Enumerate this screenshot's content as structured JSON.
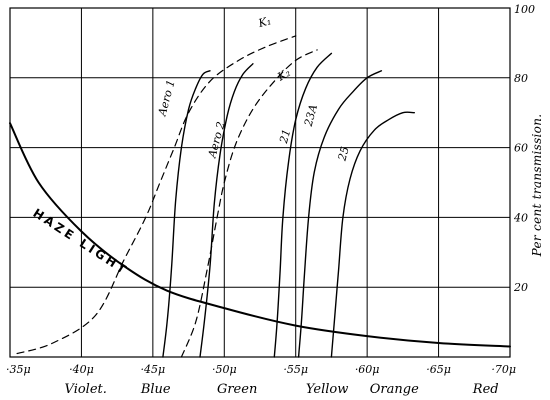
{
  "chart_data": {
    "type": "line",
    "ylabel": "Per cent transmission.",
    "xlim": [
      0.35,
      0.7
    ],
    "ylim": [
      0,
      100
    ],
    "grid": true,
    "x_ticks": [
      {
        "value": 0.35,
        "label": "·35μ"
      },
      {
        "value": 0.4,
        "label": "·40μ"
      },
      {
        "value": 0.45,
        "label": "·45μ"
      },
      {
        "value": 0.5,
        "label": "·50μ"
      },
      {
        "value": 0.55,
        "label": "·55μ"
      },
      {
        "value": 0.6,
        "label": "·60μ"
      },
      {
        "value": 0.65,
        "label": "·65μ"
      },
      {
        "value": 0.7,
        "label": "·70μ"
      }
    ],
    "y_ticks": [
      {
        "value": 20,
        "label": "20"
      },
      {
        "value": 40,
        "label": "40"
      },
      {
        "value": 60,
        "label": "60"
      },
      {
        "value": 80,
        "label": "80"
      },
      {
        "value": 100,
        "label": "100"
      }
    ],
    "color_bands": [
      {
        "x": 0.403,
        "label": "Violet."
      },
      {
        "x": 0.452,
        "label": "Blue"
      },
      {
        "x": 0.509,
        "label": "Green"
      },
      {
        "x": 0.572,
        "label": "Yellow"
      },
      {
        "x": 0.619,
        "label": "Orange"
      },
      {
        "x": 0.683,
        "label": "Red"
      }
    ],
    "series": [
      {
        "name": "HAZE LIGHT",
        "style": "solid",
        "weight": 2.0,
        "x": [
          0.35,
          0.37,
          0.4,
          0.43,
          0.46,
          0.5,
          0.55,
          0.6,
          0.65,
          0.7
        ],
        "y": [
          67,
          50,
          36,
          26,
          19,
          14,
          9,
          6,
          4,
          3
        ]
      },
      {
        "name": "Aero 1",
        "style": "solid",
        "weight": 1.4,
        "x": [
          0.457,
          0.46,
          0.463,
          0.466,
          0.47,
          0.475,
          0.48,
          0.485,
          0.49
        ],
        "y": [
          0,
          10,
          25,
          45,
          60,
          71,
          77,
          81,
          82
        ]
      },
      {
        "name": "K₁",
        "style": "dashed",
        "weight": 1.2,
        "x": [
          0.355,
          0.38,
          0.41,
          0.43,
          0.445,
          0.455,
          0.465,
          0.475,
          0.49,
          0.51,
          0.53,
          0.55
        ],
        "y": [
          1,
          4,
          12,
          28,
          40,
          50,
          60,
          70,
          79,
          85,
          89,
          92
        ]
      },
      {
        "name": "Aero 2",
        "style": "solid",
        "weight": 1.4,
        "x": [
          0.483,
          0.486,
          0.49,
          0.493,
          0.497,
          0.502,
          0.507,
          0.513,
          0.52
        ],
        "y": [
          0,
          10,
          26,
          44,
          58,
          69,
          76,
          81,
          84
        ]
      },
      {
        "name": "K₂",
        "style": "dashed",
        "weight": 1.2,
        "x": [
          0.47,
          0.48,
          0.488,
          0.495,
          0.5,
          0.508,
          0.52,
          0.535,
          0.55,
          0.565
        ],
        "y": [
          0,
          10,
          25,
          40,
          50,
          61,
          71,
          79,
          85,
          88
        ]
      },
      {
        "name": "21",
        "style": "solid",
        "weight": 1.4,
        "x": [
          0.535,
          0.537,
          0.539,
          0.541,
          0.545,
          0.55,
          0.557,
          0.565,
          0.575
        ],
        "y": [
          0,
          10,
          24,
          40,
          56,
          68,
          77,
          83,
          87
        ]
      },
      {
        "name": "23A",
        "style": "solid",
        "weight": 1.4,
        "x": [
          0.552,
          0.554,
          0.556,
          0.559,
          0.563,
          0.57,
          0.58,
          0.59,
          0.6,
          0.61
        ],
        "y": [
          0,
          10,
          23,
          40,
          53,
          63,
          71,
          76,
          80,
          82
        ]
      },
      {
        "name": "25",
        "style": "solid",
        "weight": 1.4,
        "x": [
          0.575,
          0.577,
          0.58,
          0.583,
          0.588,
          0.595,
          0.605,
          0.615,
          0.625,
          0.633
        ],
        "y": [
          0,
          10,
          25,
          40,
          51,
          59,
          65,
          68,
          70,
          70
        ]
      }
    ],
    "curve_labels": [
      {
        "series": "Aero 1",
        "text": "Aero 1",
        "x": 0.462,
        "y": 74,
        "rotate": -75
      },
      {
        "series": "K₁",
        "text": "K₁",
        "x": 0.529,
        "y": 95,
        "rotate": -15
      },
      {
        "series": "Aero 2",
        "text": "Aero 2",
        "x": 0.497,
        "y": 62,
        "rotate": -75
      },
      {
        "series": "K₂",
        "text": "K₂",
        "x": 0.543,
        "y": 80,
        "rotate": -30
      },
      {
        "series": "21",
        "text": "21",
        "x": 0.545,
        "y": 63,
        "rotate": -75
      },
      {
        "series": "23A",
        "text": "23A",
        "x": 0.563,
        "y": 69,
        "rotate": -75
      },
      {
        "series": "25",
        "text": "25",
        "x": 0.586,
        "y": 58,
        "rotate": -75
      },
      {
        "series": "HAZE LIGHT",
        "text": "HAZE LIGHT",
        "x": 0.398,
        "y": 32,
        "rotate": 33
      }
    ]
  }
}
